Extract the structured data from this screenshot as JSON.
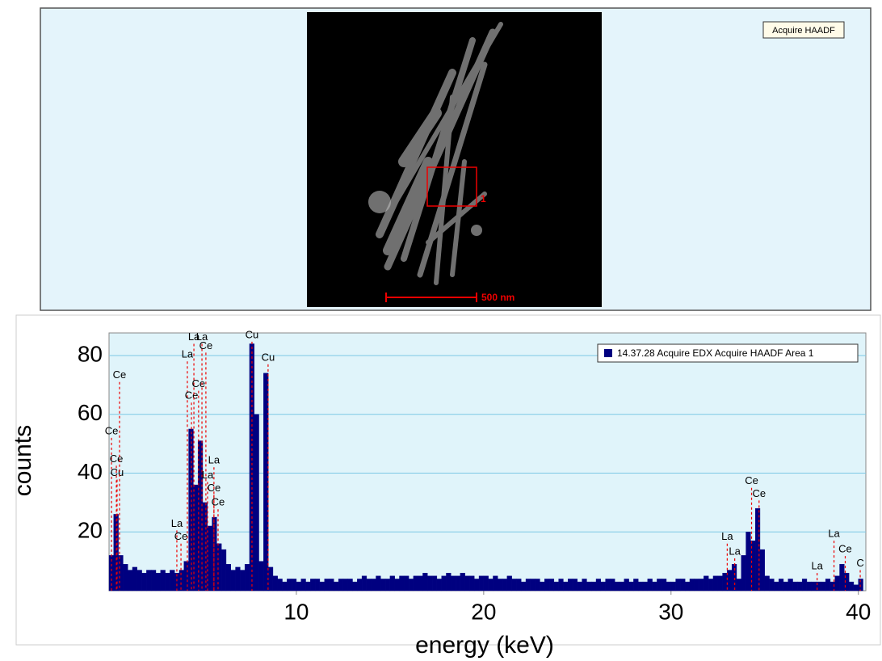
{
  "image_panel": {
    "button": "Acquire HAADF",
    "region_label": "1",
    "scale_bar": "500 nm"
  },
  "chart_data": {
    "type": "histogram",
    "x_label": "energy (keV)",
    "y_label": "counts",
    "xlim": [
      0,
      40.4
    ],
    "ylim": [
      0,
      87.7
    ],
    "xticks": [
      10,
      20,
      30,
      40
    ],
    "yticks": [
      20,
      40,
      60,
      80
    ],
    "grid": true,
    "legend": "top-right",
    "series": [
      {
        "name": "14.37.28 Acquire EDX Acquire HAADF Area 1",
        "color": "#000080",
        "bins": [
          0,
          0.25,
          0.5,
          0.75,
          1,
          1.25,
          1.5,
          1.75,
          2,
          2.25,
          2.5,
          2.75,
          3,
          3.25,
          3.5,
          3.75,
          4,
          4.25,
          4.5,
          4.75,
          5,
          5.25,
          5.5,
          5.75,
          6,
          6.25,
          6.5,
          6.75,
          7,
          7.25,
          7.5,
          7.75,
          8,
          8.25,
          8.5,
          8.75,
          9,
          9.25,
          9.5,
          9.75,
          10,
          10.25,
          10.5,
          10.75,
          11,
          11.25,
          11.5,
          11.75,
          12,
          12.25,
          12.5,
          12.75,
          13,
          13.25,
          13.5,
          13.75,
          14,
          14.25,
          14.5,
          14.75,
          15,
          15.25,
          15.5,
          15.75,
          16,
          16.25,
          16.5,
          16.75,
          17,
          17.25,
          17.5,
          17.75,
          18,
          18.25,
          18.5,
          18.75,
          19,
          19.25,
          19.5,
          19.75,
          20,
          20.25,
          20.5,
          20.75,
          21,
          21.25,
          21.5,
          21.75,
          22,
          22.25,
          22.5,
          22.75,
          23,
          23.25,
          23.5,
          23.75,
          24,
          24.25,
          24.5,
          24.75,
          25,
          25.25,
          25.5,
          25.75,
          26,
          26.25,
          26.5,
          26.75,
          27,
          27.25,
          27.5,
          27.75,
          28,
          28.25,
          28.5,
          28.75,
          29,
          29.25,
          29.5,
          29.75,
          30,
          30.25,
          30.5,
          30.75,
          31,
          31.25,
          31.5,
          31.75,
          32,
          32.25,
          32.5,
          32.75,
          33,
          33.25,
          33.5,
          33.75,
          34,
          34.25,
          34.5,
          34.75,
          35,
          35.25,
          35.5,
          35.75,
          36,
          36.25,
          36.5,
          36.75,
          37,
          37.25,
          37.5,
          37.75,
          38,
          38.25,
          38.5,
          38.75,
          39,
          39.25,
          39.5,
          39.75,
          40,
          40.25
        ],
        "values": [
          12,
          26,
          12,
          9,
          7,
          8,
          7,
          6,
          7,
          7,
          6,
          7,
          6,
          7,
          6,
          7,
          10,
          55,
          36,
          51,
          30,
          22,
          25,
          16,
          14,
          9,
          7,
          8,
          7,
          9,
          84,
          60,
          10,
          74,
          8,
          5,
          4,
          3,
          4,
          4,
          3,
          4,
          3,
          4,
          4,
          3,
          4,
          4,
          3,
          4,
          4,
          4,
          3,
          4,
          5,
          4,
          4,
          5,
          4,
          4,
          5,
          4,
          5,
          5,
          4,
          5,
          5,
          6,
          5,
          5,
          4,
          5,
          6,
          5,
          5,
          6,
          5,
          5,
          4,
          5,
          5,
          4,
          5,
          4,
          4,
          5,
          4,
          4,
          3,
          4,
          4,
          4,
          3,
          4,
          4,
          3,
          4,
          3,
          4,
          4,
          3,
          4,
          3,
          3,
          4,
          3,
          4,
          4,
          3,
          3,
          4,
          3,
          4,
          3,
          3,
          4,
          3,
          4,
          4,
          3,
          3,
          4,
          4,
          3,
          4,
          4,
          4,
          5,
          4,
          5,
          5,
          6,
          7,
          9,
          4,
          12,
          20,
          17,
          28,
          14,
          5,
          4,
          3,
          4,
          3,
          4,
          3,
          3,
          4,
          3,
          3,
          3,
          3,
          4,
          3,
          5,
          9,
          6,
          3,
          2,
          4
        ]
      }
    ],
    "markers": [
      {
        "label": "Ce",
        "x": 0.13,
        "height": 52
      },
      {
        "label": "Ce",
        "x": 0.39,
        "height": 42.5
      },
      {
        "label": "Cu",
        "x": 0.43,
        "height": 37.8
      },
      {
        "label": "Ce",
        "x": 0.56,
        "height": 71
      },
      {
        "label": "La",
        "x": 3.62,
        "height": 20.5
      },
      {
        "label": "Ce",
        "x": 3.84,
        "height": 16
      },
      {
        "label": "La",
        "x": 4.18,
        "height": 78
      },
      {
        "label": "Ce",
        "x": 4.4,
        "height": 64
      },
      {
        "label": "La",
        "x": 4.53,
        "height": 84
      },
      {
        "label": "Ce",
        "x": 4.78,
        "height": 68
      },
      {
        "label": "La",
        "x": 4.96,
        "height": 84
      },
      {
        "label": "Ce",
        "x": 5.17,
        "height": 81
      },
      {
        "label": "La",
        "x": 5.6,
        "height": 42
      },
      {
        "label": "La",
        "x": 5.26,
        "height": 37
      },
      {
        "label": "Ce",
        "x": 5.6,
        "height": 32.6
      },
      {
        "label": "Ce",
        "x": 5.82,
        "height": 27.7
      },
      {
        "label": "Cu",
        "x": 7.63,
        "height": 84.7
      },
      {
        "label": "Cu",
        "x": 8.49,
        "height": 77
      },
      {
        "label": "La",
        "x": 33.0,
        "height": 16
      },
      {
        "label": "La",
        "x": 33.4,
        "height": 11
      },
      {
        "label": "Ce",
        "x": 34.3,
        "height": 35
      },
      {
        "label": "Ce",
        "x": 34.7,
        "height": 30.7
      },
      {
        "label": "La",
        "x": 37.8,
        "height": 6
      },
      {
        "label": "La",
        "x": 38.7,
        "height": 17
      },
      {
        "label": "Ce",
        "x": 39.3,
        "height": 11.8
      },
      {
        "label": "C",
        "x": 40.1,
        "height": 7
      }
    ]
  }
}
